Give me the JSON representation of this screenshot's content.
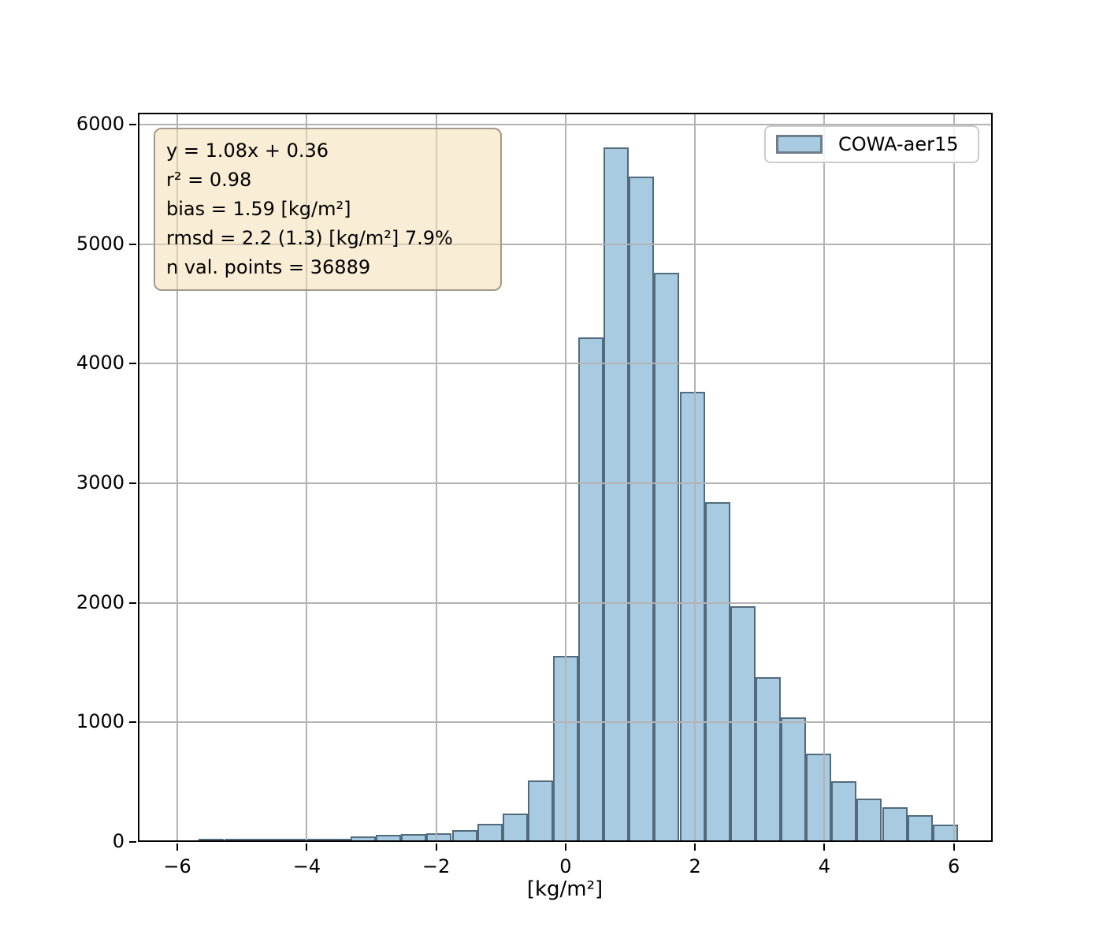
{
  "chart_data": {
    "type": "bar",
    "subtype": "histogram",
    "title": "",
    "xlabel": "[kg/m²]",
    "ylabel": "",
    "legend_entries": [
      "COWA-aer15"
    ],
    "legend_position": "upper right",
    "grid": true,
    "grid_color": "#b3b3b3",
    "xlim": [
      -6.61,
      6.6
    ],
    "ylim": [
      0,
      6100
    ],
    "x_ticks": [
      -6,
      -4,
      -2,
      0,
      2,
      4,
      6
    ],
    "x_tick_labels": [
      "−6",
      "−4",
      "−2",
      "0",
      "2",
      "4",
      "6"
    ],
    "y_ticks": [
      0,
      1000,
      2000,
      3000,
      4000,
      5000,
      6000
    ],
    "y_tick_labels": [
      "0",
      "1000",
      "2000",
      "3000",
      "4000",
      "5000",
      "6000"
    ],
    "bin_start": -6.45,
    "bin_width": 0.391,
    "counts": [
      0,
      0,
      2,
      5,
      8,
      12,
      18,
      25,
      46,
      59,
      63,
      70,
      97,
      150,
      237,
      515,
      1558,
      4224,
      5809,
      5565,
      4761,
      3765,
      2842,
      1973,
      1380,
      1042,
      739,
      510,
      363,
      292,
      225,
      147
    ],
    "bar_fill": "#a8cbe2",
    "bar_edge": "rgba(28,48,62,0.62)"
  },
  "annotation": {
    "lines": [
      "y = 1.08x + 0.36",
      "r² = 0.98",
      "bias = 1.59 [kg/m²]",
      "rmsd = 2.2 (1.3) [kg/m²] 7.9%",
      "n val. points = 36889"
    ],
    "background": "#faeed9",
    "border_color": "#a49a8c"
  },
  "legend": {
    "label": "COWA-aer15",
    "swatch_fill": "#a8cbe2",
    "swatch_border": "#6e7d89"
  }
}
